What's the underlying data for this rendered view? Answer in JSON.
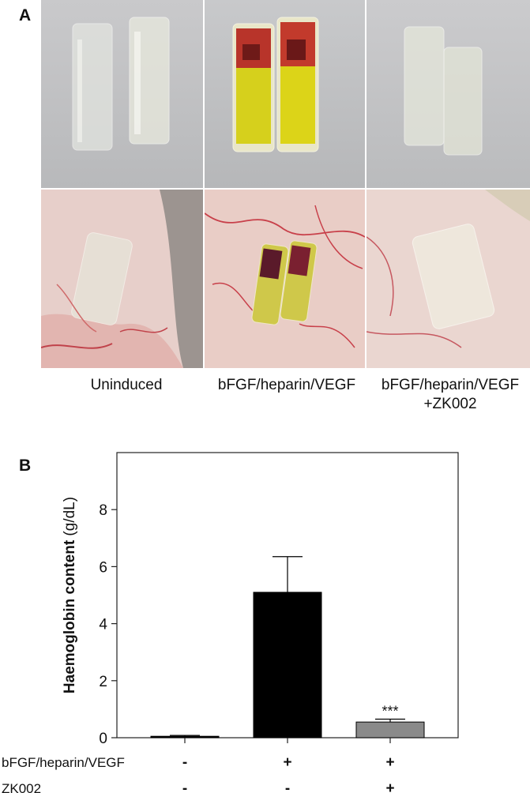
{
  "panel_a": {
    "label": "A",
    "captions": {
      "uninduced": "Uninduced",
      "induced": "bFGF/heparin/VEGF",
      "treated_line1": "bFGF/heparin/VEGF",
      "treated_line2": "+ZK002"
    }
  },
  "panel_b": {
    "label": "B"
  },
  "chart_data": {
    "type": "bar",
    "title": "",
    "xlabel": "",
    "ylabel": "Haemoglobin content (g/dL)",
    "ylabel_bold": "Haemoglobin content",
    "ylabel_unit": "(g/dL)",
    "ylim": [
      0,
      10
    ],
    "yticks": [
      0,
      2,
      4,
      6,
      8
    ],
    "categories": [
      "Uninduced",
      "bFGF/heparin/VEGF",
      "bFGF/heparin/VEGF+ZK002"
    ],
    "values": [
      0.05,
      5.1,
      0.55
    ],
    "errors": [
      0.03,
      1.25,
      0.1
    ],
    "bar_colors": [
      "#000000",
      "#000000",
      "#8a8a8a"
    ],
    "annotations": [
      "",
      "",
      "***"
    ],
    "conditions": [
      {
        "name": "bFGF/heparin/VEGF",
        "values": [
          "-",
          "+",
          "+"
        ]
      },
      {
        "name": "ZK002",
        "values": [
          "-",
          "-",
          "+"
        ]
      }
    ],
    "grid": false
  }
}
